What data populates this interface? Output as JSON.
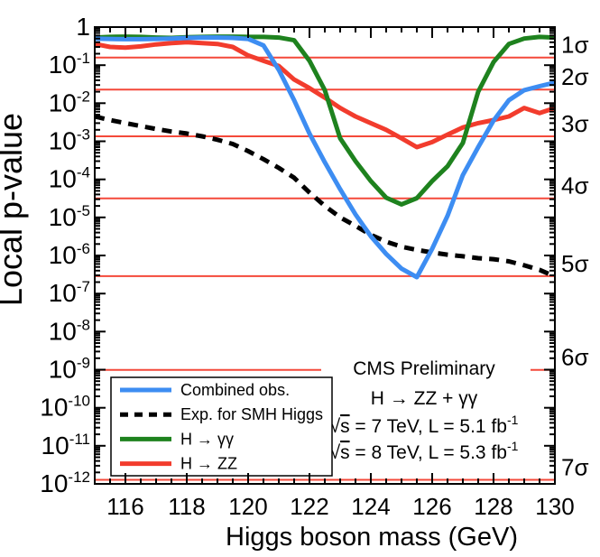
{
  "chart_data": {
    "type": "line",
    "title": "",
    "xlabel": "Higgs boson mass (GeV)",
    "ylabel": "Local p-value",
    "xlim": [
      115,
      130
    ],
    "y_scale": "log",
    "y_top": 1,
    "y_decades": 12,
    "x_major_ticks": [
      116,
      118,
      120,
      122,
      124,
      126,
      128,
      130
    ],
    "x_minor_step": 0.5,
    "y_tick_exponents": [
      0,
      -1,
      -2,
      -3,
      -4,
      -5,
      -6,
      -7,
      -8,
      -9,
      -10,
      -11,
      -12
    ],
    "grid": false,
    "legend_position": "bottom-left",
    "sigma_color_line": "#f4493a",
    "sigma_color_label": "#f5301e",
    "sigma_lines": [
      {
        "label": "1σ",
        "p": 0.1587
      },
      {
        "label": "2σ",
        "p": 0.0228
      },
      {
        "label": "3σ",
        "p": 0.00135
      },
      {
        "label": "4σ",
        "p": 3.17e-05
      },
      {
        "label": "5σ",
        "p": 2.87e-07
      },
      {
        "label": "6σ",
        "p": 9.9e-10
      },
      {
        "label": "7σ",
        "p": 1.28e-12
      }
    ],
    "x": [
      115,
      115.5,
      116,
      116.5,
      117,
      117.5,
      118,
      118.5,
      119,
      119.5,
      120,
      120.5,
      121,
      121.5,
      122,
      122.5,
      123,
      123.5,
      124,
      124.5,
      125,
      125.5,
      126,
      126.5,
      127,
      127.5,
      128,
      128.5,
      129,
      129.5,
      130
    ],
    "series": [
      {
        "name": "H → ZZ",
        "color": "#f23c2d",
        "dashed": false,
        "values": [
          0.36,
          0.3,
          0.29,
          0.31,
          0.35,
          0.38,
          0.4,
          0.38,
          0.36,
          0.3,
          0.18,
          0.13,
          0.095,
          0.042,
          0.025,
          0.014,
          0.0075,
          0.0045,
          0.003,
          0.002,
          0.0012,
          0.0007,
          0.00095,
          0.0015,
          0.0023,
          0.003,
          0.0036,
          0.0045,
          0.0075,
          0.0055,
          0.0075
        ]
      },
      {
        "name": "H → γγ",
        "color": "#1e821e",
        "dashed": false,
        "values": [
          0.53,
          0.55,
          0.56,
          0.55,
          0.53,
          0.52,
          0.54,
          0.55,
          0.56,
          0.56,
          0.55,
          0.55,
          0.53,
          0.45,
          0.13,
          0.022,
          0.0012,
          0.0003,
          9e-05,
          3.3e-05,
          2.2e-05,
          3.2e-05,
          9e-05,
          0.00022,
          0.0009,
          0.02,
          0.12,
          0.36,
          0.5,
          0.55,
          0.53
        ]
      },
      {
        "name": "Exp. for SMH Higgs",
        "color": "#000000",
        "dashed": true,
        "values": [
          0.0045,
          0.0036,
          0.003,
          0.0025,
          0.0021,
          0.0018,
          0.0016,
          0.00135,
          0.0011,
          0.00085,
          0.00055,
          0.00034,
          0.0002,
          0.00011,
          4.5e-05,
          2e-05,
          1e-05,
          6e-06,
          3.5e-06,
          2.3e-06,
          1.7e-06,
          1.4e-06,
          1.2e-06,
          1.05e-06,
          9.5e-07,
          8.5e-07,
          8e-07,
          7e-07,
          5.5e-07,
          4.2e-07,
          2.8e-07
        ]
      },
      {
        "name": "Combined obs.",
        "color": "#3d8df2",
        "dashed": false,
        "values": [
          0.5,
          0.49,
          0.48,
          0.48,
          0.49,
          0.5,
          0.52,
          0.53,
          0.53,
          0.52,
          0.49,
          0.33,
          0.075,
          0.012,
          0.0016,
          0.00028,
          5.5e-05,
          1.2e-05,
          3.2e-06,
          1.1e-06,
          4.5e-07,
          2.7e-07,
          1.5e-06,
          1.1e-05,
          0.00013,
          0.0007,
          0.0035,
          0.012,
          0.022,
          0.028,
          0.035
        ]
      }
    ],
    "legend_order": [
      "Combined obs.",
      "Exp. for SMH Higgs",
      "H → γγ",
      "H → ZZ"
    ],
    "annotations": [
      {
        "segments": [
          {
            "t": "CMS Preliminary"
          }
        ]
      },
      {
        "segments": [
          {
            "t": "H → ZZ + γγ"
          }
        ]
      },
      {
        "segments": [
          {
            "t": "√"
          },
          {
            "t": "s",
            "overline": true
          },
          {
            "t": " = 7 TeV, L = 5.1 fb"
          },
          {
            "t": "-1",
            "sup": true
          }
        ]
      },
      {
        "segments": [
          {
            "t": "√"
          },
          {
            "t": "s",
            "overline": true
          },
          {
            "t": " = 8 TeV, L = 5.3 fb"
          },
          {
            "t": "-1",
            "sup": true
          }
        ]
      }
    ]
  }
}
